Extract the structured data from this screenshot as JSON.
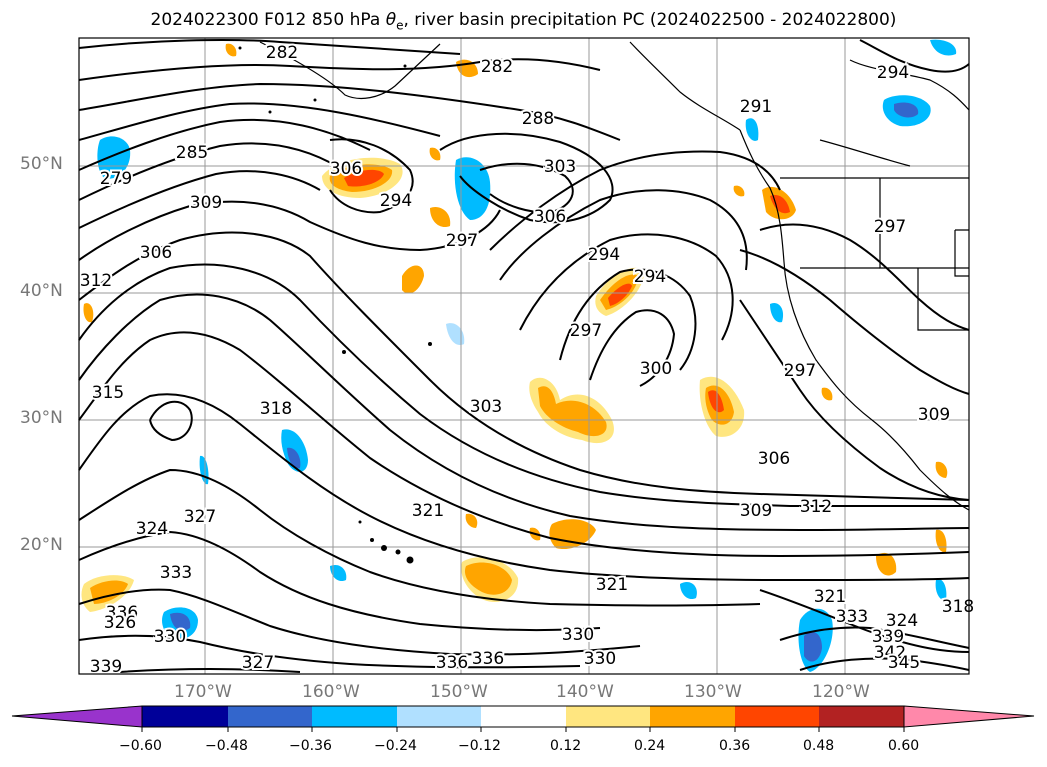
{
  "title": {
    "prefix": "2024022300 F012 850 hPa ",
    "symbol": "θ",
    "symbol_sub": "e",
    "suffix": ", river basin precipitation PC (2024022500 - 2024022800)"
  },
  "map": {
    "lat_labels": [
      "50°N",
      "40°N",
      "30°N",
      "20°N"
    ],
    "lon_labels": [
      "170°W",
      "160°W",
      "150°W",
      "140°W",
      "130°W",
      "120°W"
    ]
  },
  "contour_labels": [
    "282",
    "282",
    "288",
    "294",
    "285",
    "279",
    "306",
    "294",
    "303",
    "306",
    "309",
    "306",
    "297",
    "312",
    "294",
    "294",
    "291",
    "297",
    "297",
    "300",
    "297",
    "315",
    "318",
    "303",
    "306",
    "309",
    "312",
    "309",
    "324",
    "327",
    "321",
    "321",
    "333",
    "336",
    "330",
    "327",
    "330",
    "336",
    "330",
    "339",
    "336",
    "333",
    "339",
    "342",
    "345",
    "318",
    "321",
    "324",
    "326"
  ],
  "colorbar": {
    "colors": [
      "#9933cc",
      "#000099",
      "#3366cc",
      "#00bbff",
      "#b0e0ff",
      "#ffffff",
      "#ffe680",
      "#ffa500",
      "#ff4500",
      "#b22222",
      "#ff88aa"
    ],
    "ticks": [
      "−0.60",
      "−0.48",
      "−0.36",
      "−0.24",
      "−0.12",
      "0.12",
      "0.24",
      "0.36",
      "0.48",
      "0.60"
    ]
  }
}
